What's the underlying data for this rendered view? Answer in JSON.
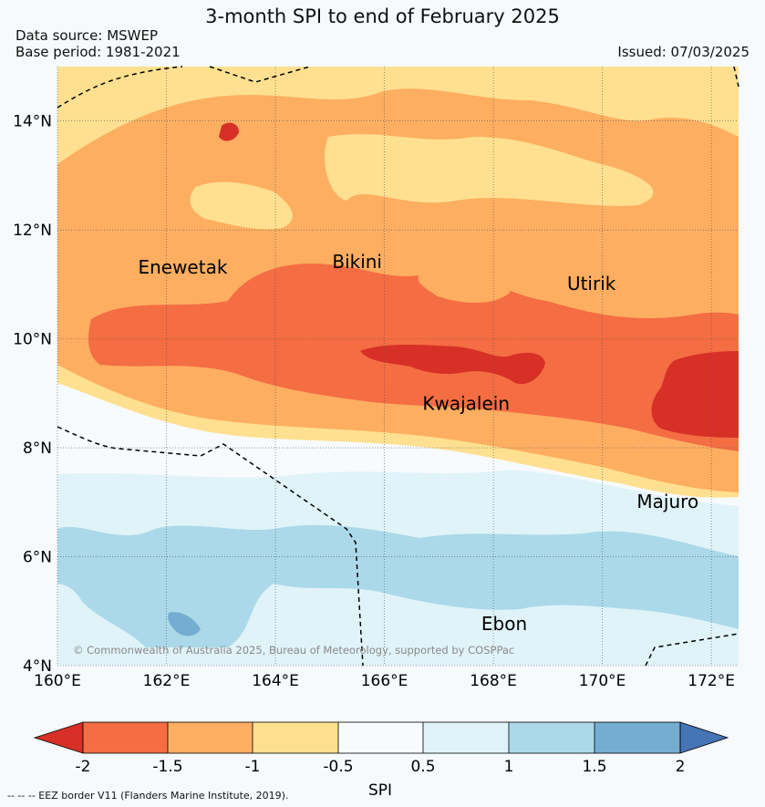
{
  "header": {
    "title": "3-month SPI to end of February 2025",
    "data_source": "Data source: MSWEP",
    "base_period": "Base period: 1981-2021",
    "issued": "Issued: 07/03/2025"
  },
  "map": {
    "x_ticks": [
      {
        "value": 160,
        "label": "160°E"
      },
      {
        "value": 162,
        "label": "162°E"
      },
      {
        "value": 164,
        "label": "164°E"
      },
      {
        "value": 166,
        "label": "166°E"
      },
      {
        "value": 168,
        "label": "168°E"
      },
      {
        "value": 170,
        "label": "170°E"
      },
      {
        "value": 172,
        "label": "172°E"
      }
    ],
    "y_ticks": [
      {
        "value": 4,
        "label": "4°N"
      },
      {
        "value": 6,
        "label": "6°N"
      },
      {
        "value": 8,
        "label": "8°N"
      },
      {
        "value": 10,
        "label": "10°N"
      },
      {
        "value": 12,
        "label": "12°N"
      },
      {
        "value": 14,
        "label": "14°N"
      }
    ],
    "extent": {
      "lon": [
        160,
        172.5
      ],
      "lat": [
        4,
        15
      ]
    },
    "places": [
      {
        "name": "Enewetak",
        "lon": 162.3,
        "lat": 11.2
      },
      {
        "name": "Bikini",
        "lon": 165.5,
        "lat": 11.3
      },
      {
        "name": "Utirik",
        "lon": 169.8,
        "lat": 10.9
      },
      {
        "name": "Kwajalein",
        "lon": 167.5,
        "lat": 8.7
      },
      {
        "name": "Majuro",
        "lon": 171.2,
        "lat": 6.9
      },
      {
        "name": "Ebon",
        "lon": 168.2,
        "lat": 4.65
      }
    ],
    "copyright": "© Commonwealth of Australia 2025, Bureau of Meteorology, supported by COSPPac"
  },
  "colorbar": {
    "label": "SPI",
    "ticks": [
      "-2",
      "-1.5",
      "-1",
      "-0.5",
      "0.5",
      "1",
      "1.5",
      "2"
    ],
    "colors": {
      "below_-2": "#d73027",
      "-2_-1.5": "#f46d43",
      "-1.5_-1": "#fdae61",
      "-1_-0.5": "#fee090",
      "-0.5_0.5": "#f7fbfd",
      "0.5_1": "#e0f3f8",
      "1_1.5": "#abd9e9",
      "1.5_2": "#74add1",
      "above_2": "#4575b4"
    }
  },
  "footer": {
    "eez_note": "--  --  -- EEZ border V11 (Flanders Marine Institute, 2019)."
  }
}
